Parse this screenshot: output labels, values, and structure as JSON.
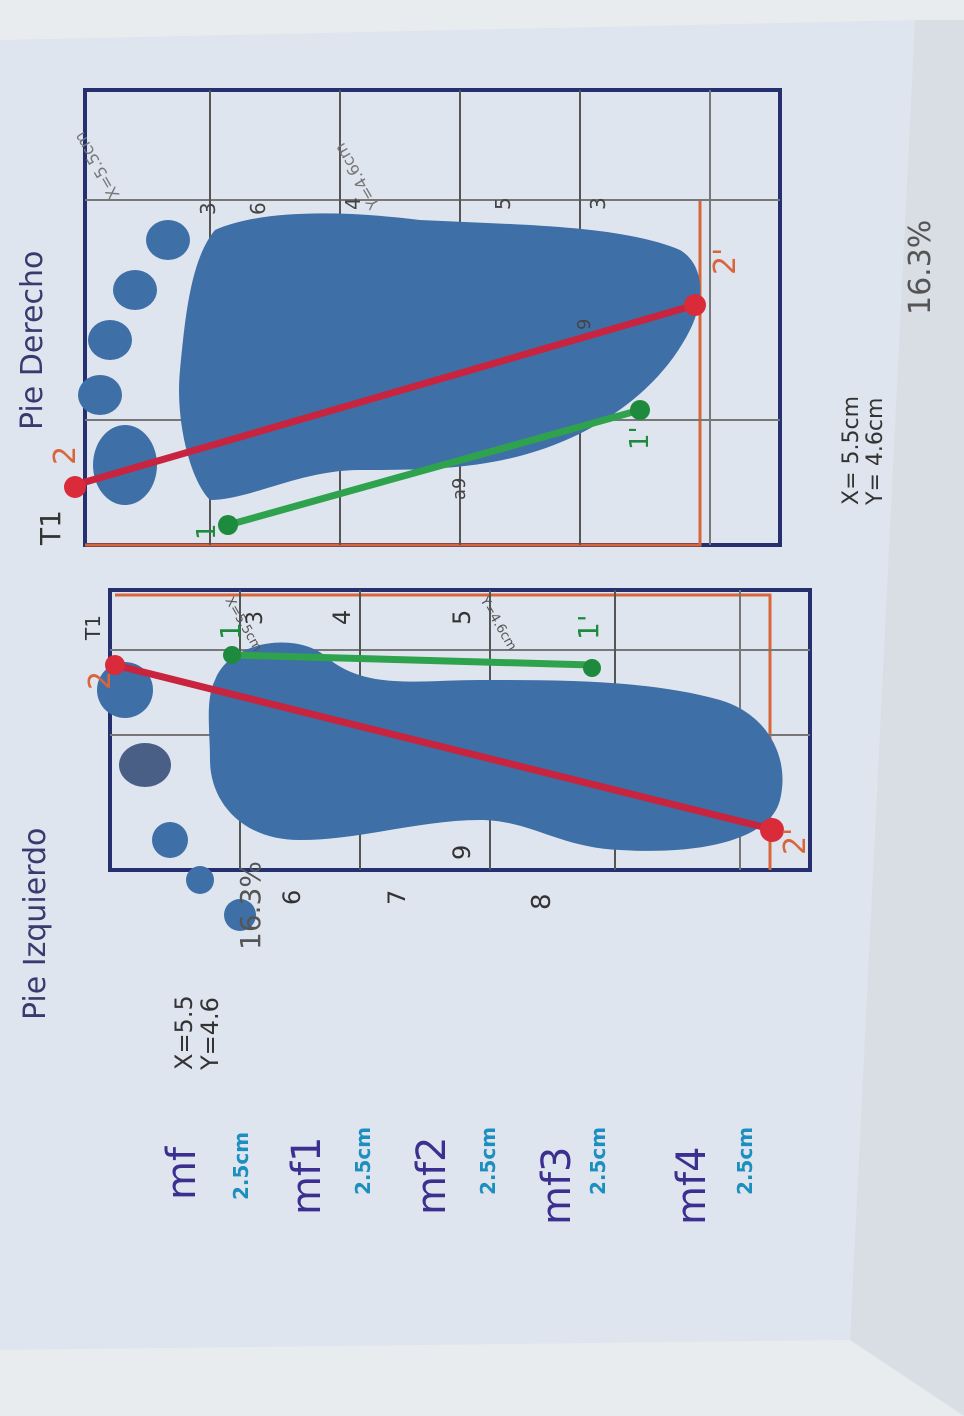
{
  "photo": {
    "left_title": "Pie Izquierdo",
    "right_title": "Pie Derecho",
    "left_box_label": "T1",
    "right_box_label": "T1",
    "left_point_start": "2",
    "left_point_end": "2'",
    "left_green_start": "1",
    "left_green_end": "1'",
    "right_point_start": "2",
    "right_point_end": "2'",
    "right_green_start": "1",
    "right_green_end": "1'",
    "left_segment_numbers": [
      "6",
      "7",
      "9",
      "8",
      "3",
      "4",
      "5"
    ],
    "right_segment_numbers": [
      "3",
      "6",
      "4",
      "5",
      "3",
      "9",
      "a9"
    ],
    "left_x": "X=5.5",
    "left_y": "Y=4.6",
    "left_percent": "16.3%",
    "right_x": "X= 5.5cm",
    "right_y": "Y= 4.6cm",
    "right_percent": "16.3%",
    "right_inline_x": "X=5.5cm",
    "right_inline_y": "Y=4.6cm",
    "left_inline_x": "X=5.5cm",
    "left_inline_y": "Y=4.6cm",
    "zones": [
      {
        "label": "mf",
        "measure": "2.5cm"
      },
      {
        "label": "mf1",
        "measure": "2.5cm"
      },
      {
        "label": "mf2",
        "measure": "2.5cm"
      },
      {
        "label": "mf3",
        "measure": "2.5cm"
      },
      {
        "label": "mf4",
        "measure": "2.5cm"
      }
    ],
    "colors": {
      "ink": "#3e6fa6",
      "ink_dark": "#2d5f99",
      "red_line": "#c8243f",
      "green_line": "#2fa24e",
      "box_line": "#27306e",
      "orange_line": "#d9653a",
      "zone_text": "#3b2f8f",
      "measure_text": "#1d8fbf"
    }
  }
}
